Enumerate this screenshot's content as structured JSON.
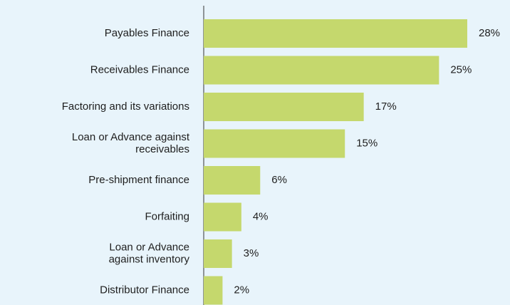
{
  "chart_data": {
    "type": "bar",
    "orientation": "horizontal",
    "categories": [
      "Payables Finance",
      "Receivables Finance",
      "Factoring and its variations",
      "Loan or Advance against\nreceivables",
      "Pre-shipment finance",
      "Forfaiting",
      "Loan or Advance\nagainst inventory",
      "Distributor Finance"
    ],
    "values": [
      28,
      25,
      17,
      15,
      6,
      4,
      3,
      2
    ],
    "value_labels": [
      "28%",
      "25%",
      "17%",
      "15%",
      "6%",
      "4%",
      "3%",
      "2%"
    ],
    "color": "#c5d86d"
  }
}
